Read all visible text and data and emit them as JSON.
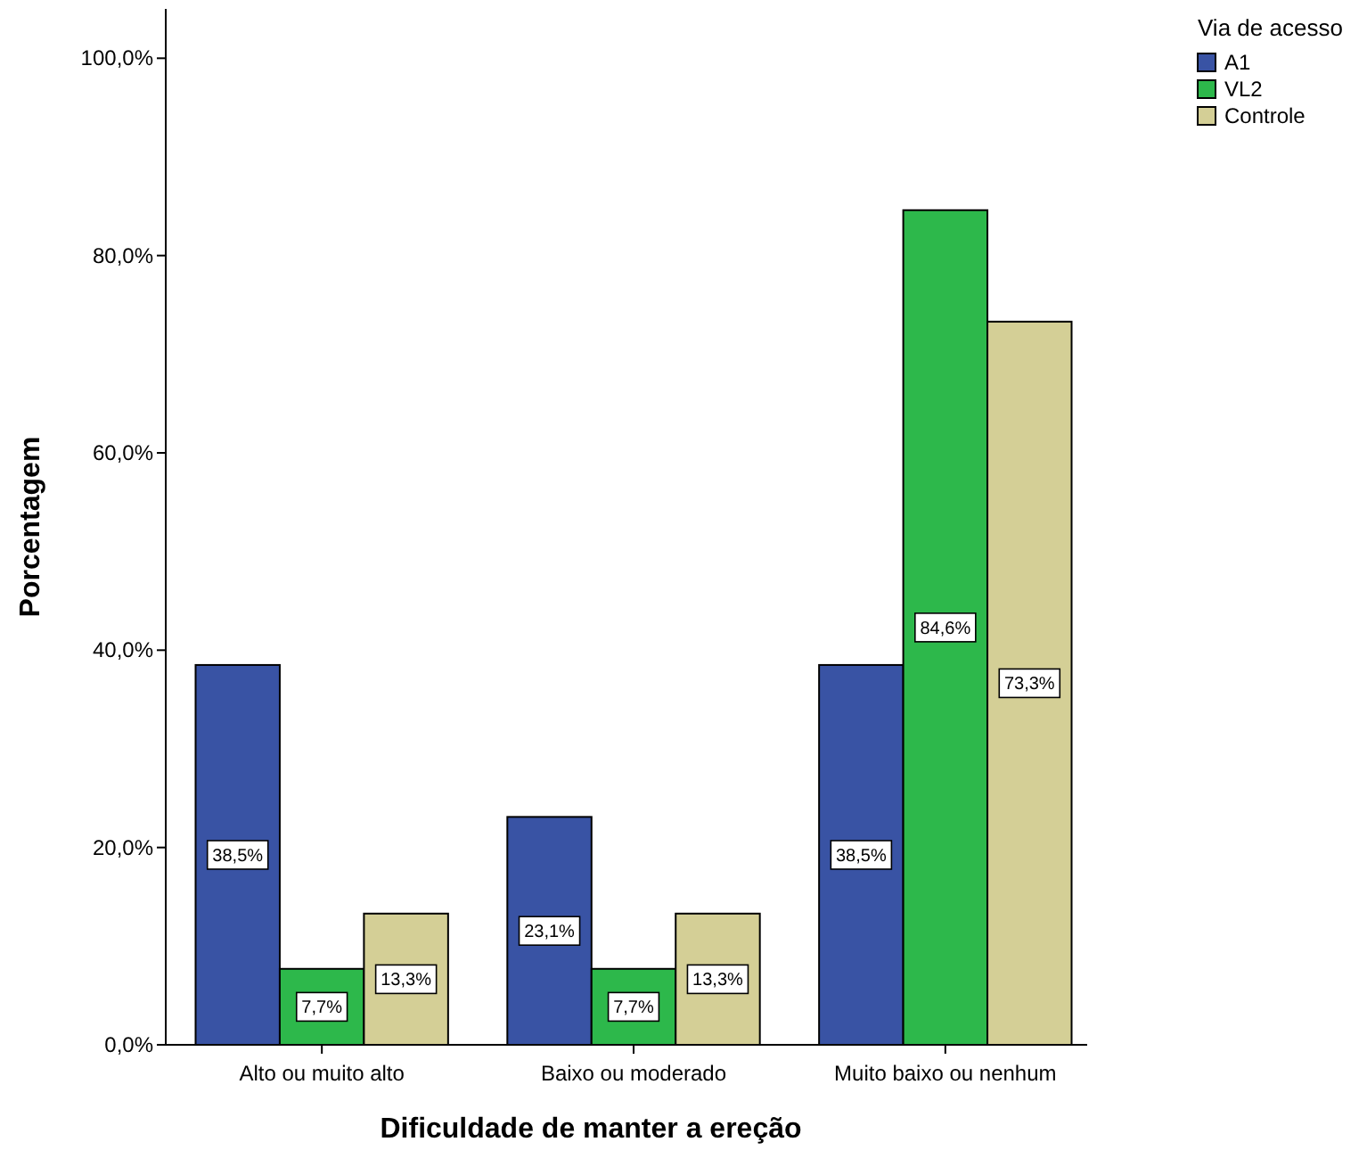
{
  "chart_data": {
    "type": "bar",
    "xlabel": "Dificuldade de manter a ereção",
    "ylabel": "Porcentagem",
    "legend_title": "Via de acesso",
    "categories": [
      "Alto ou muito alto",
      "Baixo ou moderado",
      "Muito baixo ou nenhum"
    ],
    "series": [
      {
        "name": "A1",
        "color": "#3953a4",
        "values": [
          38.5,
          23.1,
          38.5
        ],
        "value_labels": [
          "38,5%",
          "23,1%",
          "38,5%"
        ]
      },
      {
        "name": "VL2",
        "color": "#2db84b",
        "values": [
          7.7,
          7.7,
          84.6
        ],
        "value_labels": [
          "7,7%",
          "7,7%",
          "84,6%"
        ]
      },
      {
        "name": "Controle",
        "color": "#d4cf96",
        "values": [
          13.3,
          13.3,
          73.3
        ],
        "value_labels": [
          "13,3%",
          "13,3%",
          "73,3%"
        ]
      }
    ],
    "ylim": [
      0,
      105
    ],
    "yticks": [
      {
        "value": 0,
        "label": "0,0%"
      },
      {
        "value": 20,
        "label": "20,0%"
      },
      {
        "value": 40,
        "label": "40,0%"
      },
      {
        "value": 60,
        "label": "60,0%"
      },
      {
        "value": 80,
        "label": "80,0%"
      },
      {
        "value": 100,
        "label": "100,0%"
      }
    ],
    "grid": false,
    "legend": "top right"
  }
}
